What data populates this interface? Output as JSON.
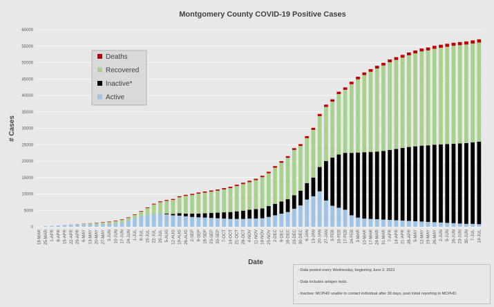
{
  "chart_data": {
    "type": "bar",
    "stacked": true,
    "title": "Montgomery County COVID-19 Positive Cases",
    "xlabel": "Date",
    "ylabel": "# Cases",
    "ylim": [
      0,
      60000
    ],
    "yticks": [
      0,
      5000,
      10000,
      15000,
      20000,
      25000,
      30000,
      35000,
      40000,
      45000,
      50000,
      55000,
      60000
    ],
    "grid": true,
    "legend_position": "top-left",
    "categories": [
      "18-MAR",
      "25-MAR",
      "1-APR",
      "8-APR",
      "15-APR",
      "22-APR",
      "29-APR",
      "6-MAY",
      "13-MAY",
      "20-MAY",
      "27-MAY",
      "3-JUN",
      "10-JUN",
      "17-JUN",
      "24-JUN",
      "1-JUL",
      "8-JUL",
      "15-JUL",
      "22-JUL",
      "29-JUL",
      "5-AUG",
      "12-AUG",
      "19-AUG",
      "26-AUG",
      "2-SEP",
      "9-SEP",
      "16-SEP",
      "23-SEP",
      "30-SEP",
      "7-OCT",
      "14-OCT",
      "21-OCT",
      "28-OCT",
      "4-NOV",
      "11-NOV",
      "18-NOV",
      "25-NOV",
      "2-DEC",
      "9-DEC",
      "16-DEC",
      "23-DEC",
      "30-DEC",
      "6-JAN",
      "13-JAN",
      "20-JAN",
      "27-JAN",
      "3-FEB",
      "10-FEB",
      "17-FEB",
      "24-FEB",
      "3-MAR",
      "10-MAR",
      "17-MAR",
      "24-MAR",
      "31-MAR",
      "7-APR",
      "14-APR",
      "21-APR",
      "28-APR",
      "5-MAY",
      "12-MAY",
      "19-MAY",
      "26-MAY",
      "2-JUN",
      "9-JUN",
      "16-JUN",
      "23-JUN",
      "30-JUN",
      "7-JUL",
      "14-JUL"
    ],
    "x_tick_labels": [
      "18-MAR",
      "25-MAR",
      "1-APR",
      "8-APR",
      "15-APR",
      "22-APR",
      "29-APR",
      "6-MAY",
      "13-MAY",
      "20-MAY",
      "27-MAY",
      "3-JUN",
      "10-JUN",
      "17-JUN",
      "24-JUN",
      "1-JUL",
      "8-JUL",
      "15-JUL",
      "22-JUL",
      "29-JUL",
      "5-AUG",
      "12-AUG",
      "19-AUG",
      "26-AUG",
      "2-SEP",
      "9-SEP",
      "16-SEP",
      "23-SEP",
      "30-SEP",
      "7-OCT",
      "14-OCT",
      "21-OCT",
      "28-OCT",
      "4-NOV",
      "11-NOV",
      "18-NOV",
      "25-NOV",
      "2-DEC",
      "9-DEC",
      "16-DEC",
      "23-DEC",
      "30-DEC",
      "6-JAN",
      "13-JAN",
      "20-JAN",
      "27-JAN",
      "3-FEB",
      "10-FEB",
      "17-FEB",
      "24-FEB",
      "3-MAR",
      "10-MAR",
      "17-MAR",
      "24-MAR",
      "31-MAR",
      "7-APR",
      "14-APR",
      "21-APR",
      "28-APR",
      "5-MAY",
      "12-MAY",
      "19-MAY",
      "26-MAY",
      "2-JUN",
      "9-JUN",
      "16-JUN",
      "23-JUN",
      "30-JUN",
      "7-JUL",
      "14-JUL"
    ],
    "series": [
      {
        "name": "Active",
        "color": "#9dc3e6",
        "values": [
          50,
          200,
          300,
          400,
          500,
          600,
          650,
          700,
          700,
          750,
          800,
          850,
          1000,
          1300,
          1800,
          2600,
          3200,
          3700,
          3900,
          4000,
          3800,
          3500,
          3400,
          3200,
          3000,
          2900,
          2800,
          2700,
          2600,
          2500,
          2400,
          2400,
          2400,
          2500,
          2500,
          2600,
          3000,
          3500,
          4000,
          4500,
          5500,
          6500,
          8300,
          9300,
          10800,
          8000,
          6400,
          5800,
          5200,
          3500,
          2800,
          2500,
          2400,
          2300,
          2200,
          2100,
          2000,
          1900,
          1800,
          1700,
          1600,
          1500,
          1400,
          1300,
          1200,
          1100,
          1000,
          900,
          900,
          800
        ]
      },
      {
        "name": "Inactive*",
        "color": "#000000",
        "values": [
          0,
          0,
          0,
          0,
          0,
          0,
          0,
          0,
          0,
          0,
          0,
          0,
          0,
          0,
          0,
          0,
          0,
          0,
          0,
          0,
          200,
          400,
          700,
          800,
          1000,
          1100,
          1300,
          1500,
          1700,
          1900,
          2100,
          2300,
          2500,
          2700,
          2900,
          3000,
          3300,
          3500,
          3700,
          3900,
          4100,
          4500,
          5000,
          5700,
          7400,
          12000,
          14700,
          16200,
          17300,
          19000,
          19800,
          20200,
          20400,
          20600,
          20900,
          21300,
          21700,
          22100,
          22500,
          22800,
          23100,
          23300,
          23600,
          23800,
          24000,
          24200,
          24400,
          24600,
          24800,
          25100
        ]
      },
      {
        "name": "Recovered",
        "color": "#a9d18e",
        "values": [
          0,
          0,
          0,
          0,
          0,
          50,
          100,
          200,
          300,
          400,
          500,
          600,
          700,
          800,
          900,
          1000,
          1400,
          2000,
          2900,
          3500,
          3900,
          4300,
          4900,
          5400,
          5700,
          6100,
          6300,
          6500,
          6700,
          7000,
          7300,
          7700,
          8100,
          8400,
          8800,
          9500,
          10000,
          11000,
          11800,
          12600,
          13800,
          13600,
          13700,
          14500,
          15500,
          16500,
          17000,
          18400,
          19200,
          20900,
          22300,
          23500,
          24400,
          25300,
          26000,
          26700,
          27100,
          27500,
          27900,
          28300,
          28700,
          28900,
          29200,
          29400,
          29600,
          29800,
          29900,
          30000,
          30100,
          30200
        ]
      },
      {
        "name": "Deaths",
        "color": "#c00000",
        "values": [
          0,
          0,
          0,
          0,
          10,
          20,
          40,
          60,
          80,
          100,
          120,
          140,
          150,
          160,
          170,
          180,
          190,
          200,
          220,
          240,
          260,
          280,
          300,
          320,
          330,
          340,
          350,
          360,
          370,
          380,
          390,
          400,
          410,
          420,
          430,
          440,
          450,
          470,
          490,
          510,
          540,
          570,
          600,
          630,
          660,
          690,
          710,
          730,
          750,
          770,
          790,
          800,
          810,
          820,
          830,
          840,
          850,
          860,
          870,
          880,
          890,
          900,
          910,
          920,
          930,
          940,
          950,
          960,
          970,
          980
        ]
      }
    ]
  },
  "notes": [
    "- Data posted every Wednesday, beginning June 2, 2021",
    "- Data includes antigen tests.",
    "- Inactive: MCPHD unable to contact individual after 30 days, post initial reporting to MCPHD."
  ]
}
